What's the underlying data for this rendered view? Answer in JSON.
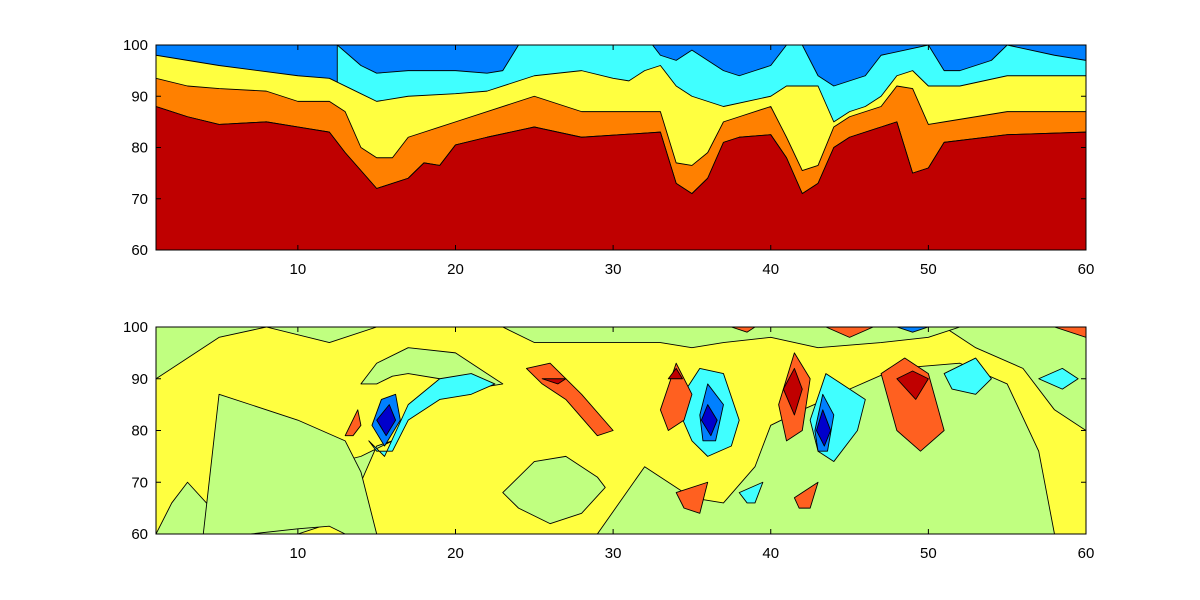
{
  "chart_data": [
    {
      "type": "contour",
      "title": "",
      "xlabel": "",
      "ylabel": "",
      "xlim": [
        1,
        60
      ],
      "ylim": [
        60,
        100
      ],
      "x_ticks": [
        "10",
        "20",
        "30",
        "40",
        "50",
        "60"
      ],
      "y_ticks": [
        "60",
        "70",
        "80",
        "90",
        "100"
      ],
      "x_tick_values": [
        10,
        20,
        30,
        40,
        50,
        60
      ],
      "y_tick_values": [
        60,
        70,
        80,
        90,
        100
      ],
      "grid": false,
      "colormap": "jet",
      "levels": [
        {
          "name": "band-dark-red",
          "color": "#bf0000"
        },
        {
          "name": "band-orange",
          "color": "#ff8000"
        },
        {
          "name": "band-yellow",
          "color": "#ffff40"
        },
        {
          "name": "band-cyan",
          "color": "#40ffff"
        },
        {
          "name": "band-blue",
          "color": "#0080ff"
        },
        {
          "name": "band-dark-blue",
          "color": "#0000cc"
        }
      ],
      "boundaries": [
        {
          "name": "red-orange",
          "x": [
            1,
            3,
            5,
            8,
            12,
            13,
            15,
            17,
            18,
            19,
            20,
            22,
            25,
            28,
            33,
            34,
            35,
            36,
            37,
            38,
            40,
            41,
            42,
            43,
            44,
            45,
            47,
            48,
            49,
            50,
            51,
            55,
            60
          ],
          "y": [
            88,
            86,
            84.5,
            85,
            83,
            79,
            72,
            74,
            77,
            76.5,
            80.5,
            82,
            84,
            82,
            83,
            73,
            71,
            74,
            81,
            82,
            82.5,
            78,
            71,
            73,
            80,
            82,
            84,
            85,
            75,
            76,
            81,
            82.5,
            83
          ]
        },
        {
          "name": "orange-yellow",
          "x": [
            1,
            3,
            5,
            8,
            10,
            12,
            13,
            14,
            15,
            16,
            17,
            18,
            20,
            25,
            28,
            33,
            34,
            35,
            36,
            37,
            38,
            40,
            41,
            42,
            43,
            44,
            45,
            47,
            48,
            49,
            50,
            51,
            55,
            60
          ],
          "y": [
            93.5,
            92,
            91.5,
            91,
            89,
            89,
            87,
            80,
            78,
            78,
            82,
            83,
            85,
            90,
            87,
            87,
            77,
            76.5,
            79,
            85,
            86,
            88,
            82,
            75.5,
            76.5,
            84,
            86,
            88,
            92,
            91.5,
            84.5,
            85,
            87,
            87
          ]
        },
        {
          "name": "yellow-cyan",
          "x": [
            1,
            5,
            10,
            12,
            14,
            15,
            17,
            20,
            22,
            25,
            28,
            30,
            31,
            32,
            33,
            34,
            35,
            36,
            37,
            40,
            41,
            43,
            44,
            45,
            46,
            47,
            48,
            49,
            50,
            52,
            55,
            60
          ],
          "y": [
            98,
            96,
            94,
            93.5,
            90.5,
            89,
            90,
            90.5,
            91,
            94,
            95,
            93.5,
            93,
            95,
            96,
            92,
            90,
            89,
            88,
            90,
            92,
            92,
            85,
            87,
            88,
            90,
            94,
            95,
            92,
            92,
            94,
            94
          ]
        },
        {
          "name": "cyan-blue",
          "x": [
            12.5,
            14,
            15,
            17,
            20,
            22,
            23,
            24,
            32.5,
            33,
            34,
            35,
            37,
            38,
            39,
            40,
            41,
            42,
            43,
            44,
            45,
            46,
            47,
            50,
            51,
            52,
            54,
            55,
            58,
            60
          ],
          "y": [
            100,
            96,
            94.5,
            95,
            95,
            94.5,
            95,
            100,
            100,
            98,
            97,
            99,
            95,
            94,
            95,
            96,
            100,
            100,
            94,
            92,
            93,
            94,
            98,
            100,
            95,
            95,
            97,
            100,
            98,
            97
          ]
        }
      ]
    },
    {
      "type": "contour",
      "title": "",
      "xlabel": "",
      "ylabel": "",
      "xlim": [
        1,
        60
      ],
      "ylim": [
        60,
        100
      ],
      "x_ticks": [
        "10",
        "20",
        "30",
        "40",
        "50",
        "60"
      ],
      "y_ticks": [
        "60",
        "70",
        "80",
        "90",
        "100"
      ],
      "x_tick_values": [
        10,
        20,
        30,
        40,
        50,
        60
      ],
      "y_tick_values": [
        60,
        70,
        80,
        90,
        100
      ],
      "grid": false,
      "colormap": "jet",
      "background_color": "#ffff40",
      "regions": [
        {
          "name": "green-left-top",
          "color": "#c0ff80",
          "x": [
            1,
            8,
            12,
            15,
            12,
            8,
            5,
            1
          ],
          "y": [
            100,
            100,
            97,
            100,
            100,
            100,
            98,
            90
          ]
        },
        {
          "name": "green-left-large",
          "color": "#c0ff80",
          "x": [
            1,
            4,
            6,
            10,
            14,
            16,
            15,
            14,
            12,
            10,
            6,
            3,
            2,
            1
          ],
          "y": [
            60,
            60,
            67,
            72,
            75,
            78,
            77,
            70,
            62,
            60,
            60,
            70,
            66,
            60
          ]
        },
        {
          "name": "green-center-hill",
          "color": "#c0ff80",
          "x": [
            4,
            5,
            7,
            10,
            13,
            14,
            15,
            13,
            12,
            10,
            7,
            5
          ],
          "y": [
            60,
            87,
            85,
            82,
            78,
            72,
            60,
            60,
            61.5,
            61,
            60,
            60
          ]
        },
        {
          "name": "green-upper-mid",
          "color": "#c0ff80",
          "x": [
            14,
            15,
            17,
            20,
            22,
            23,
            21,
            19,
            17,
            16,
            15
          ],
          "y": [
            89,
            93,
            96,
            95,
            91,
            89,
            88,
            90,
            91,
            90.5,
            89
          ]
        },
        {
          "name": "green-mid-strip",
          "color": "#c0ff80",
          "x": [
            23,
            25,
            27,
            29,
            29.5,
            28,
            26,
            24
          ],
          "y": [
            68,
            74,
            75,
            71,
            69,
            64,
            62,
            65
          ]
        },
        {
          "name": "green-center-band",
          "color": "#c0ff80",
          "x": [
            29,
            32,
            35,
            37,
            39,
            40,
            42,
            45,
            48,
            52,
            55,
            57,
            58,
            57,
            55,
            52,
            48,
            45,
            42,
            40,
            37,
            34,
            31
          ],
          "y": [
            60,
            73,
            67,
            66,
            73,
            81,
            84,
            88,
            92,
            93,
            89,
            76,
            60,
            60,
            60,
            60,
            60,
            60,
            60,
            60,
            60,
            60,
            60
          ]
        },
        {
          "name": "green-right-top",
          "color": "#c0ff80",
          "x": [
            51,
            53,
            56,
            58,
            60,
            60,
            57,
            54,
            52
          ],
          "y": [
            100,
            96,
            92,
            84,
            80,
            100,
            100,
            100,
            100
          ]
        },
        {
          "name": "green-top-center",
          "color": "#c0ff80",
          "x": [
            23,
            25,
            30,
            33,
            35,
            37,
            40,
            43,
            47,
            50,
            52,
            50,
            46,
            42,
            38,
            34,
            30,
            26
          ],
          "y": [
            100,
            97,
            97,
            97,
            96,
            97,
            98,
            96,
            97,
            98,
            100,
            100,
            100,
            100,
            100,
            100,
            100,
            100
          ]
        },
        {
          "name": "cyan-blob-1",
          "color": "#40ffff",
          "x": [
            14.5,
            15.5,
            17,
            19,
            21,
            22.5,
            21,
            19,
            17,
            16,
            15
          ],
          "y": [
            78,
            75,
            85,
            90,
            91,
            89,
            87,
            86,
            82,
            76,
            76
          ]
        },
        {
          "name": "blue-blob-1",
          "color": "#0080ff",
          "x": [
            14.7,
            15.5,
            16.5,
            16.2,
            15.3
          ],
          "y": [
            81,
            77,
            82,
            87,
            86
          ]
        },
        {
          "name": "darkblue-blob-1",
          "color": "#0000cc",
          "x": [
            15,
            15.6,
            16.2,
            15.8
          ],
          "y": [
            82,
            79,
            82,
            85
          ]
        },
        {
          "name": "orange-blob-1",
          "color": "#ff6020",
          "x": [
            24.5,
            26,
            28,
            30,
            29,
            27,
            25.5
          ],
          "y": [
            92,
            93,
            87,
            80,
            79,
            86,
            89
          ]
        },
        {
          "name": "red-blob-1",
          "color": "#c00000",
          "x": [
            25.5,
            27,
            26.5
          ],
          "y": [
            90,
            90,
            89
          ]
        },
        {
          "name": "cyan-blob-2",
          "color": "#40ffff",
          "x": [
            34,
            35.5,
            37,
            38,
            37.5,
            36,
            35
          ],
          "y": [
            85,
            92,
            91,
            82,
            77,
            75,
            78
          ]
        },
        {
          "name": "blue-blob-2",
          "color": "#0080ff",
          "x": [
            35.5,
            36,
            37,
            36.5,
            35.7
          ],
          "y": [
            83,
            89,
            85,
            78,
            78
          ]
        },
        {
          "name": "darkblue-blob-2",
          "color": "#0000cc",
          "x": [
            35.6,
            36,
            36.6,
            36.2
          ],
          "y": [
            82,
            85,
            82,
            79
          ]
        },
        {
          "name": "orange-blob-2",
          "color": "#ff6020",
          "x": [
            33,
            34,
            35,
            34.5,
            33.5
          ],
          "y": [
            84,
            93,
            87,
            82,
            80
          ]
        },
        {
          "name": "red-blob-2",
          "color": "#c00000",
          "x": [
            33.5,
            34,
            34.4
          ],
          "y": [
            90,
            92,
            90
          ]
        },
        {
          "name": "cyan-blob-3",
          "color": "#40ffff",
          "x": [
            42.5,
            43.5,
            45,
            46,
            45.5,
            44,
            43
          ],
          "y": [
            82,
            91,
            88,
            86,
            80,
            74,
            76
          ]
        },
        {
          "name": "blue-blob-3",
          "color": "#0080ff",
          "x": [
            42.8,
            43.3,
            44,
            43.6,
            43
          ],
          "y": [
            80,
            87,
            83,
            76,
            76
          ]
        },
        {
          "name": "darkblue-blob-3",
          "color": "#0000cc",
          "x": [
            42.9,
            43.3,
            43.8,
            43.4
          ],
          "y": [
            80,
            84,
            80,
            77
          ]
        },
        {
          "name": "orange-blob-3",
          "color": "#ff6020",
          "x": [
            40.5,
            41.5,
            42.5,
            42,
            41
          ],
          "y": [
            85,
            95,
            90,
            80,
            78
          ]
        },
        {
          "name": "red-blob-3",
          "color": "#c00000",
          "x": [
            40.8,
            41.5,
            42,
            41.5
          ],
          "y": [
            88,
            92,
            88,
            83
          ]
        },
        {
          "name": "orange-blob-4",
          "color": "#ff6020",
          "x": [
            47,
            48.5,
            50,
            51,
            49.5,
            48
          ],
          "y": [
            91,
            94,
            91,
            80,
            76,
            80
          ]
        },
        {
          "name": "red-blob-4",
          "color": "#c00000",
          "x": [
            48,
            49,
            50,
            49.2
          ],
          "y": [
            90,
            91.5,
            90,
            86
          ]
        },
        {
          "name": "cyan-blob-4",
          "color": "#40ffff",
          "x": [
            51,
            53,
            54,
            53,
            51.5
          ],
          "y": [
            91,
            94,
            90,
            87,
            88
          ]
        },
        {
          "name": "cyan-blob-5",
          "color": "#40ffff",
          "x": [
            57,
            58.5,
            59.5,
            58.5
          ],
          "y": [
            90,
            92,
            90,
            88
          ]
        },
        {
          "name": "orange-small-1",
          "color": "#ff6020",
          "x": [
            13,
            13.8,
            14,
            13.5
          ],
          "y": [
            79,
            84,
            81,
            79
          ]
        },
        {
          "name": "orange-small-2",
          "color": "#ff6020",
          "x": [
            34,
            36,
            35.5,
            34.5
          ],
          "y": [
            68,
            70,
            64,
            65
          ]
        },
        {
          "name": "orange-small-3",
          "color": "#ff6020",
          "x": [
            41.5,
            43,
            42.5,
            41.8
          ],
          "y": [
            67,
            70,
            65,
            65
          ]
        },
        {
          "name": "cyan-small-1",
          "color": "#40ffff",
          "x": [
            38,
            39.5,
            39,
            38.5
          ],
          "y": [
            68,
            70,
            66,
            66
          ]
        },
        {
          "name": "red-top-1",
          "color": "#ff6020",
          "x": [
            37.5,
            39,
            38.5
          ],
          "y": [
            100,
            100,
            99
          ]
        },
        {
          "name": "red-top-2",
          "color": "#ff6020",
          "x": [
            43.5,
            46.5,
            45
          ],
          "y": [
            100,
            100,
            98
          ]
        },
        {
          "name": "blue-top-1",
          "color": "#0080ff",
          "x": [
            48,
            50,
            49
          ],
          "y": [
            100,
            100,
            99
          ]
        },
        {
          "name": "red-top-right",
          "color": "#ff6020",
          "x": [
            58,
            60,
            60
          ],
          "y": [
            100,
            100,
            98
          ]
        }
      ]
    }
  ]
}
